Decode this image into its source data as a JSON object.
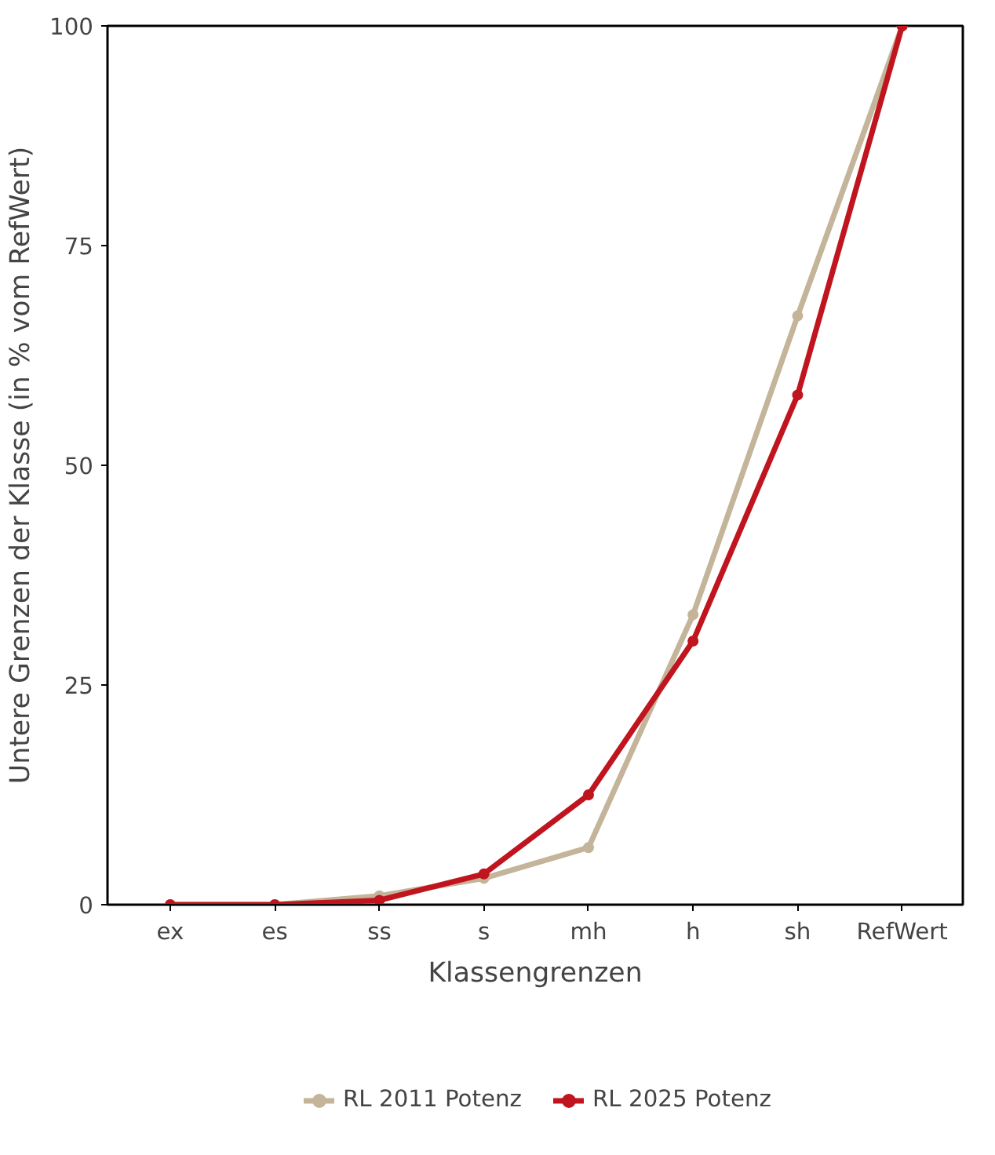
{
  "chart_data": {
    "type": "line",
    "xlabel": "Klassengrenzen",
    "ylabel": "Untere Grenzen der Klasse (in % vom RefWert)",
    "categories": [
      "ex",
      "es",
      "ss",
      "s",
      "mh",
      "h",
      "sh",
      "RefWert"
    ],
    "ylim": [
      0,
      100
    ],
    "yticks": [
      0,
      25,
      50,
      75,
      100
    ],
    "grid": false,
    "legend": "bottom",
    "marker": "circle",
    "line_style": "solid",
    "series": [
      {
        "name": "RL 2011 Potenz",
        "color": "#c4b49a",
        "values": [
          0,
          0,
          1,
          3,
          6.5,
          33,
          67,
          100
        ]
      },
      {
        "name": "RL 2025 Potenz",
        "color": "#c0141e",
        "values": [
          0,
          0,
          0.5,
          3.5,
          12.5,
          30,
          58,
          100
        ]
      }
    ]
  }
}
